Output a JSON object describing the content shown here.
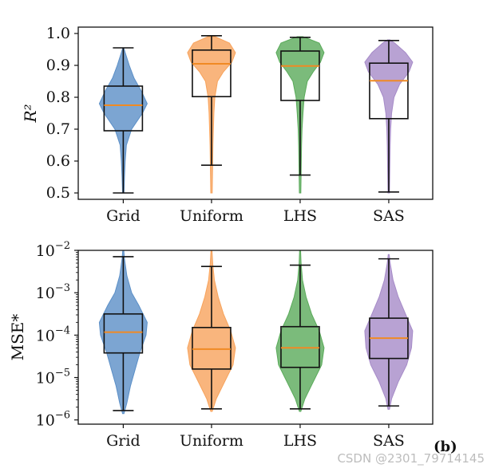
{
  "chart_data": [
    {
      "type": "violin+box",
      "ylabel": "R²",
      "scale": "linear",
      "ylim": [
        0.48,
        1.02
      ],
      "yticks": [
        0.5,
        0.6,
        0.7,
        0.8,
        0.9,
        1.0
      ],
      "ytick_labels": [
        "0.5",
        "0.6",
        "0.7",
        "0.8",
        "0.9",
        "1.0"
      ],
      "categories": [
        "Grid",
        "Uniform",
        "LHS",
        "SAS"
      ],
      "colors": [
        "#5b8fc7",
        "#f7a35c",
        "#5aaa5a",
        "#a68bc8"
      ],
      "median_color": "#f08a24",
      "series": [
        {
          "name": "Grid",
          "whisker_low": 0.5,
          "q1": 0.695,
          "median": 0.775,
          "q3": 0.835,
          "whisker_high": 0.955,
          "density": [
            [
              0.5,
              0.03
            ],
            [
              0.55,
              0.05
            ],
            [
              0.6,
              0.08
            ],
            [
              0.65,
              0.13
            ],
            [
              0.7,
              0.35
            ],
            [
              0.75,
              0.8
            ],
            [
              0.78,
              1.0
            ],
            [
              0.82,
              0.75
            ],
            [
              0.86,
              0.45
            ],
            [
              0.9,
              0.25
            ],
            [
              0.94,
              0.08
            ],
            [
              0.955,
              0.02
            ]
          ]
        },
        {
          "name": "Uniform",
          "whisker_low": 0.587,
          "q1": 0.802,
          "median": 0.905,
          "q3": 0.948,
          "whisker_high": 0.993,
          "density": [
            [
              0.5,
              0.03
            ],
            [
              0.55,
              0.04
            ],
            [
              0.6,
              0.05
            ],
            [
              0.65,
              0.06
            ],
            [
              0.7,
              0.08
            ],
            [
              0.75,
              0.1
            ],
            [
              0.8,
              0.14
            ],
            [
              0.85,
              0.25
            ],
            [
              0.88,
              0.5
            ],
            [
              0.91,
              0.85
            ],
            [
              0.94,
              1.0
            ],
            [
              0.97,
              0.75
            ],
            [
              0.99,
              0.15
            ]
          ]
        },
        {
          "name": "LHS",
          "whisker_low": 0.556,
          "q1": 0.79,
          "median": 0.898,
          "q3": 0.945,
          "whisker_high": 0.988,
          "density": [
            [
              0.5,
              0.03
            ],
            [
              0.55,
              0.04
            ],
            [
              0.6,
              0.05
            ],
            [
              0.65,
              0.06
            ],
            [
              0.7,
              0.08
            ],
            [
              0.75,
              0.12
            ],
            [
              0.8,
              0.17
            ],
            [
              0.85,
              0.3
            ],
            [
              0.88,
              0.55
            ],
            [
              0.91,
              0.85
            ],
            [
              0.94,
              1.0
            ],
            [
              0.97,
              0.8
            ],
            [
              0.99,
              0.12
            ]
          ]
        },
        {
          "name": "SAS",
          "whisker_low": 0.503,
          "q1": 0.733,
          "median": 0.852,
          "q3": 0.907,
          "whisker_high": 0.978,
          "density": [
            [
              0.5,
              0.03
            ],
            [
              0.55,
              0.04
            ],
            [
              0.6,
              0.05
            ],
            [
              0.65,
              0.06
            ],
            [
              0.7,
              0.08
            ],
            [
              0.75,
              0.12
            ],
            [
              0.8,
              0.22
            ],
            [
              0.84,
              0.45
            ],
            [
              0.88,
              0.85
            ],
            [
              0.91,
              1.0
            ],
            [
              0.94,
              0.7
            ],
            [
              0.97,
              0.25
            ],
            [
              0.98,
              0.05
            ]
          ]
        }
      ]
    },
    {
      "type": "violin+box",
      "ylabel": "MSE*",
      "scale": "log",
      "ylim_log10": [
        -6.1,
        -2.0
      ],
      "yticks_log10": [
        -6,
        -5,
        -4,
        -3,
        -2
      ],
      "ytick_bases": [
        "10",
        "10",
        "10",
        "10",
        "10"
      ],
      "ytick_exponents": [
        "−6",
        "−5",
        "−4",
        "−3",
        "−2"
      ],
      "categories": [
        "Grid",
        "Uniform",
        "LHS",
        "SAS"
      ],
      "colors": [
        "#5b8fc7",
        "#f7a35c",
        "#5aaa5a",
        "#a68bc8"
      ],
      "median_color": "#f08a24",
      "series": [
        {
          "name": "Grid",
          "whisker_low_log10": -5.78,
          "q1_log10": -4.42,
          "median_log10": -3.93,
          "q3_log10": -3.5,
          "whisker_high_log10": -2.15,
          "density": [
            [
              -5.85,
              0.03
            ],
            [
              -5.6,
              0.15
            ],
            [
              -5.2,
              0.3
            ],
            [
              -4.8,
              0.5
            ],
            [
              -4.4,
              0.7
            ],
            [
              -4.0,
              0.95
            ],
            [
              -3.7,
              1.0
            ],
            [
              -3.3,
              0.65
            ],
            [
              -3.0,
              0.35
            ],
            [
              -2.6,
              0.15
            ],
            [
              -2.2,
              0.05
            ],
            [
              -2.0,
              0.02
            ]
          ]
        },
        {
          "name": "Uniform",
          "whisker_low_log10": -5.74,
          "q1_log10": -4.8,
          "median_log10": -4.33,
          "q3_log10": -3.82,
          "whisker_high_log10": -2.38,
          "density": [
            [
              -5.8,
              0.03
            ],
            [
              -5.5,
              0.2
            ],
            [
              -5.1,
              0.55
            ],
            [
              -4.7,
              0.9
            ],
            [
              -4.3,
              1.0
            ],
            [
              -3.9,
              0.8
            ],
            [
              -3.5,
              0.5
            ],
            [
              -3.1,
              0.28
            ],
            [
              -2.7,
              0.12
            ],
            [
              -2.3,
              0.05
            ],
            [
              -2.0,
              0.02
            ]
          ]
        },
        {
          "name": "LHS",
          "whisker_low_log10": -5.74,
          "q1_log10": -4.76,
          "median_log10": -4.3,
          "q3_log10": -3.8,
          "whisker_high_log10": -2.35,
          "density": [
            [
              -5.8,
              0.03
            ],
            [
              -5.5,
              0.2
            ],
            [
              -5.1,
              0.55
            ],
            [
              -4.7,
              0.9
            ],
            [
              -4.3,
              1.0
            ],
            [
              -3.9,
              0.8
            ],
            [
              -3.5,
              0.48
            ],
            [
              -3.1,
              0.25
            ],
            [
              -2.7,
              0.1
            ],
            [
              -2.3,
              0.04
            ],
            [
              -2.0,
              0.02
            ]
          ]
        },
        {
          "name": "SAS",
          "whisker_low_log10": -5.67,
          "q1_log10": -4.55,
          "median_log10": -4.07,
          "q3_log10": -3.6,
          "whisker_high_log10": -2.2,
          "density": [
            [
              -5.75,
              0.03
            ],
            [
              -5.5,
              0.12
            ],
            [
              -5.1,
              0.4
            ],
            [
              -4.7,
              0.75
            ],
            [
              -4.3,
              0.95
            ],
            [
              -3.9,
              1.0
            ],
            [
              -3.5,
              0.7
            ],
            [
              -3.1,
              0.4
            ],
            [
              -2.7,
              0.18
            ],
            [
              -2.3,
              0.06
            ],
            [
              -2.1,
              0.02
            ]
          ]
        }
      ]
    }
  ],
  "figure": {
    "panel_tag": "(b)",
    "watermark": "CSDN @2301_79714145"
  }
}
